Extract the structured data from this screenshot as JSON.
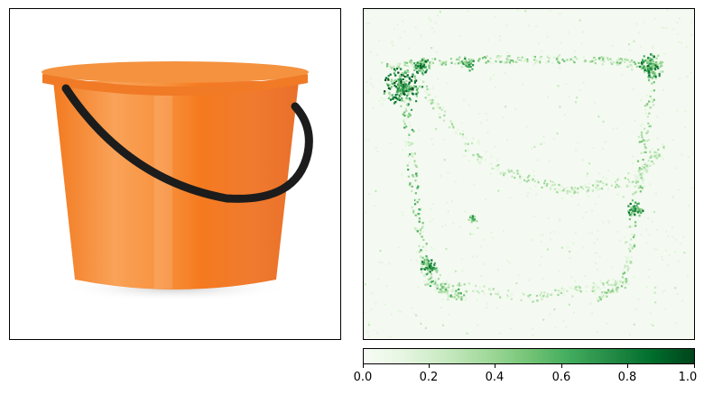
{
  "chart_data": [
    {
      "type": "image",
      "subject": "orange-bucket-photo",
      "colors": {
        "bucket": "#f57c22",
        "bucket_light": "#f9a25a",
        "rim": "#f28a38",
        "handle": "#1c1c1c"
      }
    },
    {
      "type": "heatmap",
      "colormap": "Greens",
      "colorbar": {
        "range": [
          0.0,
          1.0
        ],
        "ticks": [
          0.0,
          0.2,
          0.4,
          0.6,
          0.8,
          1.0
        ],
        "tick_labels": [
          "0.0",
          "0.2",
          "0.4",
          "0.6",
          "0.8",
          "1.0"
        ],
        "orientation": "horizontal",
        "placement": "bottom"
      },
      "colors": {
        "low": "#f7fcf5",
        "mid": "#74c476",
        "high": "#00441b"
      }
    }
  ]
}
